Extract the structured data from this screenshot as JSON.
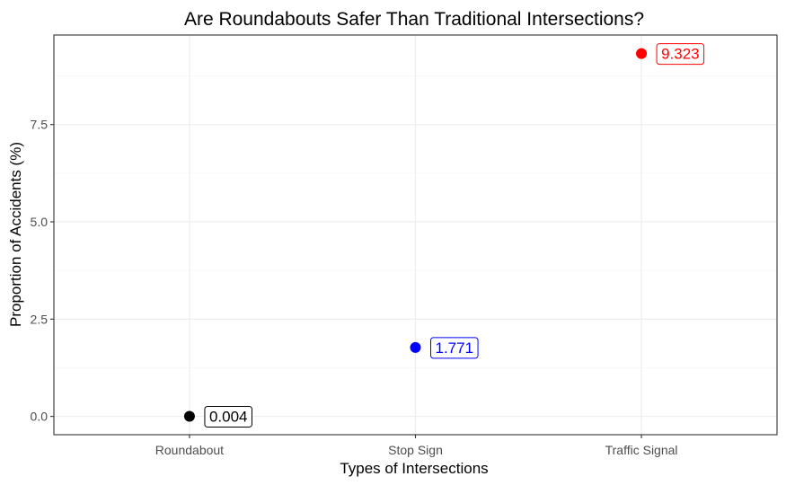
{
  "chart_data": {
    "type": "scatter",
    "title": "Are Roundabouts Safer Than Traditional Intersections?",
    "xlabel": "Types of Intersections",
    "ylabel": "Proportion of Accidents (%)",
    "categories": [
      "Roundabout",
      "Stop Sign",
      "Traffic Signal"
    ],
    "values": [
      0.004,
      1.771,
      9.323
    ],
    "value_labels": [
      "0.004",
      "1.771",
      "9.323"
    ],
    "point_colors": [
      "#000000",
      "#0000ff",
      "#ff0000"
    ],
    "ylim": [
      -0.47,
      9.8
    ],
    "y_ticks": [
      0.0,
      2.5,
      5.0,
      7.5
    ],
    "y_tick_labels": [
      "0.0",
      "2.5",
      "5.0",
      "7.5"
    ],
    "grid": true,
    "legend": "none"
  }
}
